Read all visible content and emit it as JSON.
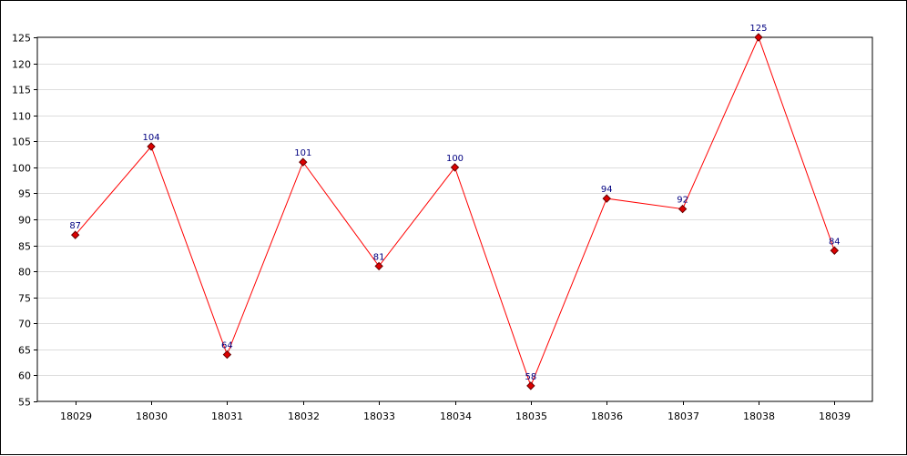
{
  "chart_data": {
    "type": "line",
    "title": "",
    "xlabel": "",
    "ylabel": "",
    "categories": [
      "18029",
      "18030",
      "18031",
      "18032",
      "18033",
      "18034",
      "18035",
      "18036",
      "18037",
      "18038",
      "18039"
    ],
    "series": [
      {
        "values": [
          87,
          104,
          64,
          101,
          81,
          100,
          58,
          94,
          92,
          125,
          84
        ]
      }
    ],
    "ylim": [
      55,
      125
    ],
    "yticks": [
      55,
      60,
      65,
      70,
      75,
      80,
      85,
      90,
      95,
      100,
      105,
      110,
      115,
      120,
      125
    ],
    "grid": "horizontal",
    "legend": "none",
    "colors": {
      "line": "#ff0000",
      "marker": "#dd0000",
      "marker_outline": "#660000",
      "data_label": "#000080",
      "grid": "#dddddd",
      "axis": "#000000"
    }
  }
}
